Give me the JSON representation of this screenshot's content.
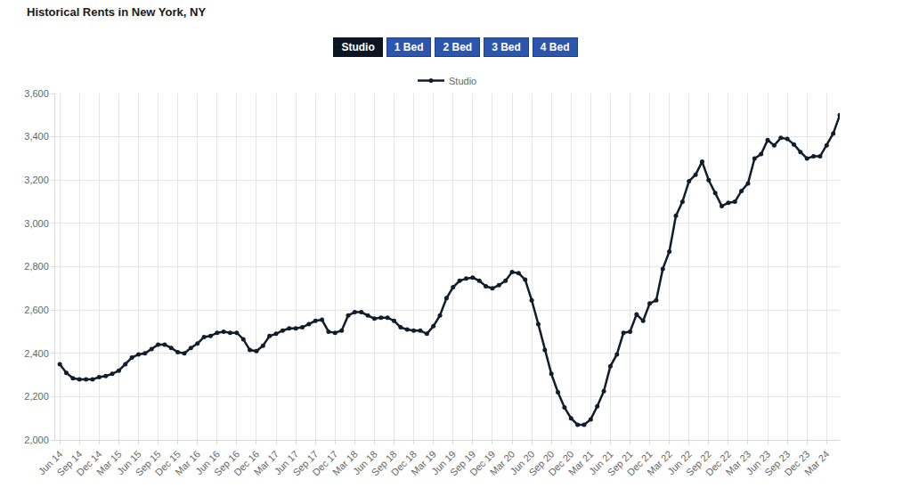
{
  "controls": {
    "buttons": [
      "Studio",
      "1 Bed",
      "2 Bed",
      "3 Bed",
      "4 Bed"
    ],
    "selected": "Studio"
  },
  "chart_data": {
    "type": "line",
    "title": "Historical Rents in New York, NY",
    "categories": [
      "Jun 14",
      null,
      null,
      "Sep 14",
      null,
      null,
      "Dec 14",
      null,
      null,
      "Mar 15",
      null,
      null,
      "Jun 15",
      null,
      null,
      "Sep 15",
      null,
      null,
      "Dec 15",
      null,
      null,
      "Mar 16",
      null,
      null,
      "Jun 16",
      null,
      null,
      "Sep 16",
      null,
      null,
      "Dec 16",
      null,
      null,
      "Mar 17",
      null,
      null,
      "Jun 17",
      null,
      null,
      "Sep 17",
      null,
      null,
      "Dec 17",
      null,
      null,
      "Mar 18",
      null,
      null,
      "Jun 18",
      null,
      null,
      "Sep 18",
      null,
      null,
      "Dec 18",
      null,
      null,
      "Mar 19",
      null,
      null,
      "Jun 19",
      null,
      null,
      "Sep 19",
      null,
      null,
      "Dec 19",
      null,
      null,
      "Mar 20",
      null,
      null,
      "Jun 20",
      null,
      null,
      "Sep 20",
      null,
      null,
      "Dec 20",
      null,
      null,
      "Mar 21",
      null,
      null,
      "Jun 21",
      null,
      null,
      "Sep 21",
      null,
      null,
      "Dec 21",
      null,
      null,
      "Mar 22",
      null,
      null,
      "Jun 22",
      null,
      null,
      "Sep 22",
      null,
      null,
      "Dec 22",
      null,
      null,
      "Mar 23",
      null,
      null,
      "Jun 23",
      null,
      null,
      "Sep 23",
      null,
      null,
      "Dec 23",
      null,
      null,
      "Mar 24",
      null,
      null
    ],
    "series": [
      {
        "name": "Studio",
        "color": "#0f1d2c",
        "marker": "circle",
        "line_style": "solid",
        "values": [
          2350,
          2310,
          2285,
          2280,
          2280,
          2280,
          2290,
          2295,
          2305,
          2320,
          2350,
          2380,
          2395,
          2400,
          2420,
          2440,
          2440,
          2425,
          2405,
          2400,
          2425,
          2445,
          2475,
          2480,
          2495,
          2500,
          2495,
          2495,
          2465,
          2415,
          2410,
          2435,
          2480,
          2490,
          2505,
          2515,
          2515,
          2520,
          2535,
          2550,
          2555,
          2500,
          2495,
          2505,
          2575,
          2590,
          2590,
          2575,
          2560,
          2565,
          2565,
          2550,
          2520,
          2510,
          2505,
          2505,
          2490,
          2525,
          2575,
          2655,
          2705,
          2735,
          2745,
          2750,
          2735,
          2710,
          2700,
          2715,
          2735,
          2775,
          2770,
          2740,
          2645,
          2535,
          2415,
          2305,
          2220,
          2150,
          2100,
          2070,
          2070,
          2095,
          2155,
          2225,
          2340,
          2395,
          2495,
          2500,
          2580,
          2550,
          2630,
          2645,
          2790,
          2870,
          3035,
          3100,
          3195,
          3225,
          3285,
          3200,
          3140,
          3080,
          3095,
          3100,
          3150,
          3185,
          3300,
          3320,
          3385,
          3360,
          3395,
          3390,
          3365,
          3330,
          3300,
          3310,
          3310,
          3360,
          3415,
          3500
        ]
      }
    ],
    "ylim": [
      2000,
      3600
    ],
    "yticks": [
      {
        "value": 2000,
        "label": "2,000"
      },
      {
        "value": 2200,
        "label": "2,200"
      },
      {
        "value": 2400,
        "label": "2,400"
      },
      {
        "value": 2600,
        "label": "2,600"
      },
      {
        "value": 2800,
        "label": "2,800"
      },
      {
        "value": 3000,
        "label": "3,000"
      },
      {
        "value": 3200,
        "label": "3,200"
      },
      {
        "value": 3400,
        "label": "3,400"
      },
      {
        "value": 3600,
        "label": "3,600"
      }
    ],
    "grid": true,
    "legend": "top"
  }
}
